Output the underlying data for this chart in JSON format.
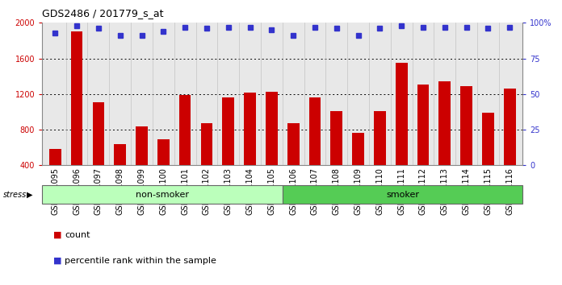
{
  "title": "GDS2486 / 201779_s_at",
  "categories": [
    "GSM101095",
    "GSM101096",
    "GSM101097",
    "GSM101098",
    "GSM101099",
    "GSM101100",
    "GSM101101",
    "GSM101102",
    "GSM101103",
    "GSM101104",
    "GSM101105",
    "GSM101106",
    "GSM101107",
    "GSM101108",
    "GSM101109",
    "GSM101110",
    "GSM101111",
    "GSM101112",
    "GSM101113",
    "GSM101114",
    "GSM101115",
    "GSM101116"
  ],
  "bar_values": [
    580,
    1900,
    1110,
    640,
    840,
    690,
    1190,
    870,
    1160,
    1220,
    1230,
    870,
    1160,
    1010,
    760,
    1010,
    1550,
    1310,
    1340,
    1290,
    990,
    1260
  ],
  "percentile_values": [
    93,
    98,
    96,
    91,
    91,
    94,
    97,
    96,
    97,
    97,
    95,
    91,
    97,
    96,
    91,
    96,
    98,
    97,
    97,
    97,
    96,
    97
  ],
  "bar_color": "#cc0000",
  "dot_color": "#3333cc",
  "ylim_left": [
    400,
    2000
  ],
  "ylim_right": [
    0,
    100
  ],
  "yticks_left": [
    400,
    800,
    1200,
    1600,
    2000
  ],
  "yticks_right": [
    0,
    25,
    50,
    75,
    100
  ],
  "grid_values": [
    800,
    1200,
    1600
  ],
  "non_smoker_count": 11,
  "smoker_count": 11,
  "groups": [
    {
      "label": "non-smoker",
      "color": "#bbffbb"
    },
    {
      "label": "smoker",
      "color": "#55cc55"
    }
  ],
  "stress_label": "stress",
  "legend_items": [
    {
      "label": "count",
      "color": "#cc0000"
    },
    {
      "label": "percentile rank within the sample",
      "color": "#3333cc"
    }
  ],
  "bg_color": "#e8e8e8",
  "title_fontsize": 9,
  "tick_fontsize": 7,
  "axis_color_left": "#cc0000",
  "axis_color_right": "#3333cc"
}
